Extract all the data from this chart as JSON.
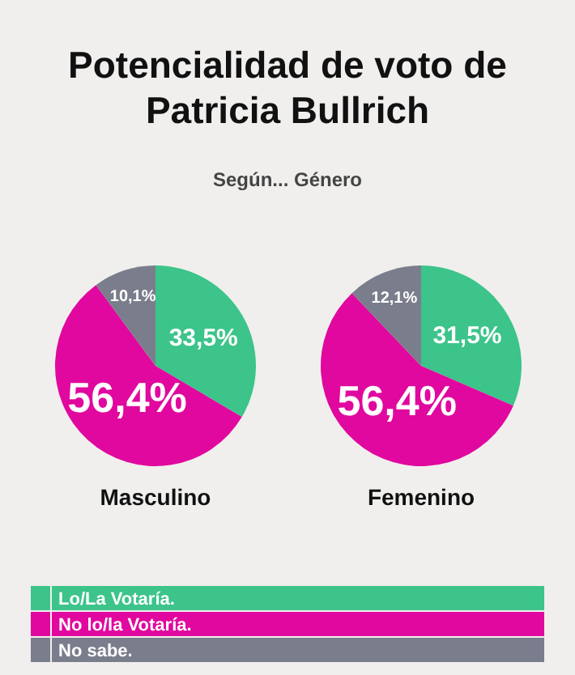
{
  "chart_data": [
    {
      "type": "pie",
      "title": "Potencialidad de voto de Patricia Bullrich",
      "subtitle": "Según... Género",
      "xlabel": "Masculino",
      "categories": [
        "Lo/La Votaría.",
        "No lo/la Votaría.",
        "No sabe."
      ],
      "values": [
        33.5,
        56.4,
        10.1
      ],
      "value_labels": [
        "33,5%",
        "56,4%",
        "10,1%"
      ],
      "colors": [
        "#3cc48a",
        "#e0089e",
        "#7a7d8c"
      ],
      "legend": "bottom"
    },
    {
      "type": "pie",
      "xlabel": "Femenino",
      "categories": [
        null,
        null,
        null
      ],
      "values": [
        31.5,
        56.4,
        12.1
      ],
      "value_labels": [
        "31,5%",
        "56,4%",
        "12,1%"
      ],
      "colors": [
        "#3cc48a",
        "#e0089e",
        "#7a7d8c"
      ]
    }
  ]
}
